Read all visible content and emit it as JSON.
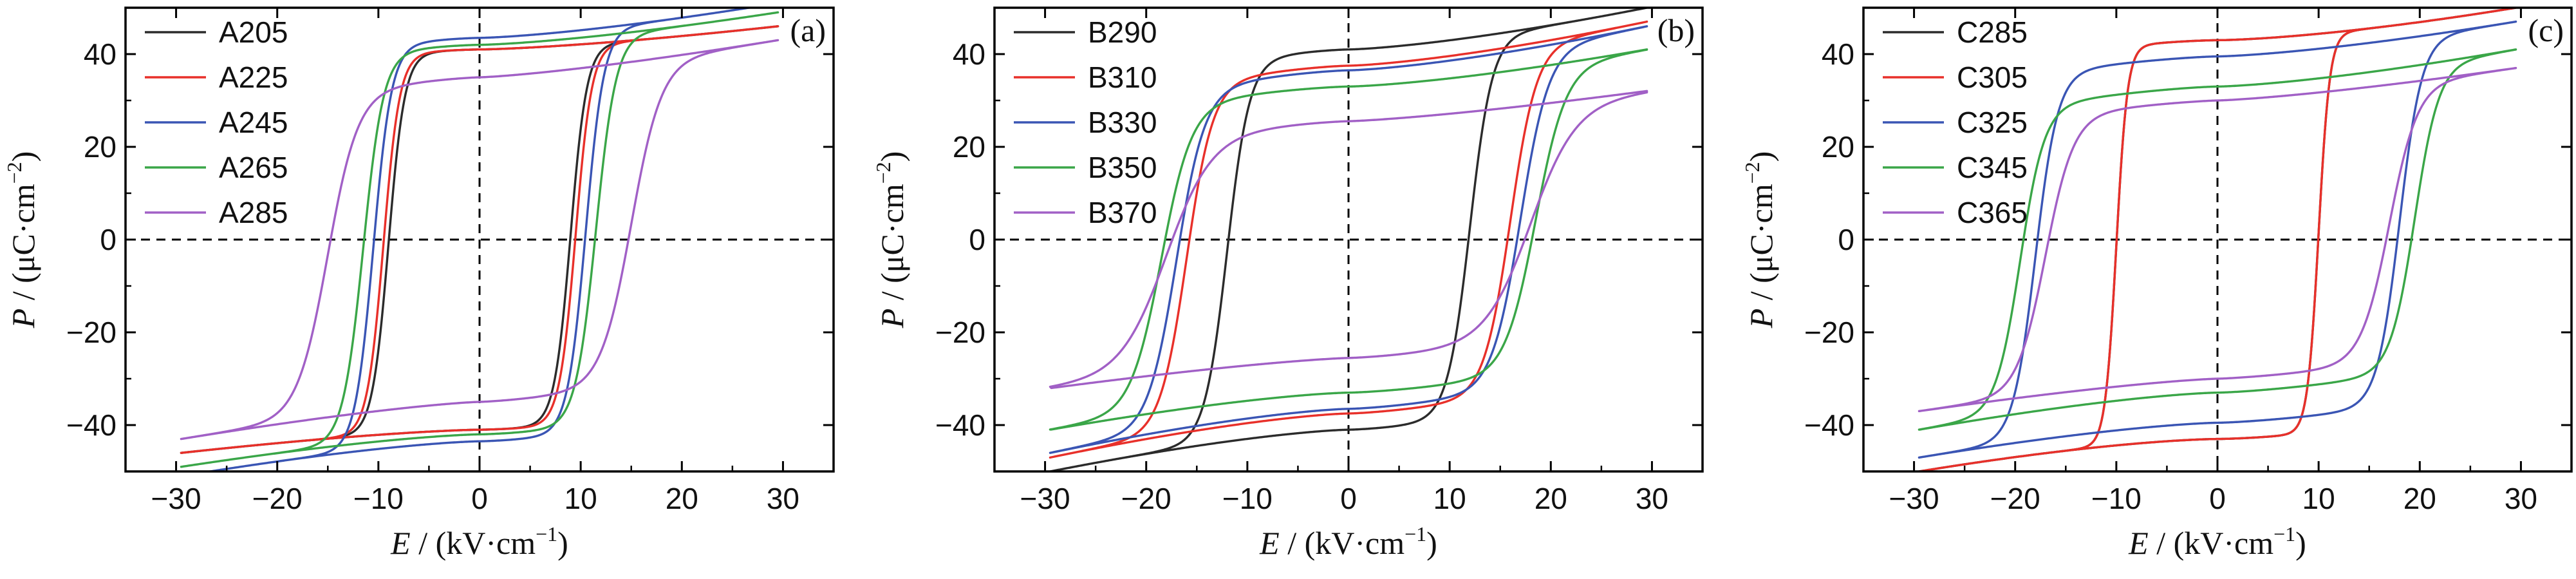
{
  "chart_data": [
    {
      "type": "line",
      "panel_label": "(a)",
      "xlabel": {
        "symbol": "E",
        "unit": " / (kV·cm",
        "exp": "−1",
        "close": ")"
      },
      "ylabel": {
        "symbol": "P",
        "unit": " / (μC·cm",
        "exp": "−2",
        "close": ")"
      },
      "xlim": [
        -35,
        35
      ],
      "ylim": [
        -50,
        50
      ],
      "xticks": [
        -30,
        -20,
        -10,
        0,
        10,
        20,
        30
      ],
      "yticks": [
        -40,
        -20,
        0,
        20,
        40
      ],
      "grid": false,
      "zero_lines": "dashed",
      "legend_position": "top-left",
      "series": [
        {
          "name": "A205",
          "color": "#2b2b2b",
          "Emax": 29.5,
          "Pmax": 41,
          "Pr": 36,
          "Ec": 9,
          "k": 1.6,
          "m": 1.4
        },
        {
          "name": "A225",
          "color": "#e8302a",
          "Emax": 29.5,
          "Pmax": 41,
          "Pr": 36,
          "Ec": 9.5,
          "k": 1.6,
          "m": 1.4
        },
        {
          "name": "A245",
          "color": "#3a55b4",
          "Emax": 29.5,
          "Pmax": 43.5,
          "Pr": 36,
          "Ec": 10.5,
          "k": 1.8,
          "m": 1.4
        },
        {
          "name": "A265",
          "color": "#3aa648",
          "Emax": 29.5,
          "Pmax": 42,
          "Pr": 35,
          "Ec": 11.5,
          "k": 2.0,
          "m": 1.4
        },
        {
          "name": "A285",
          "color": "#a160c6",
          "Emax": 29.5,
          "Pmax": 35,
          "Pr": 27,
          "Ec": 15,
          "k": 3.0,
          "m": 1.3
        }
      ]
    },
    {
      "type": "line",
      "panel_label": "(b)",
      "xlabel": {
        "symbol": "E",
        "unit": " / (kV·cm",
        "exp": "−1",
        "close": ")"
      },
      "ylabel": {
        "symbol": "P",
        "unit": " / (μC·cm",
        "exp": "−2",
        "close": ")"
      },
      "xlim": [
        -35,
        35
      ],
      "ylim": [
        -50,
        50
      ],
      "xticks": [
        -30,
        -20,
        -10,
        0,
        10,
        20,
        30
      ],
      "yticks": [
        -40,
        -20,
        0,
        20,
        40
      ],
      "grid": false,
      "zero_lines": "dashed",
      "legend_position": "top-left",
      "series": [
        {
          "name": "B290",
          "color": "#2b2b2b",
          "Emax": 29.5,
          "Pmax": 41,
          "Pr": 32,
          "Ec": 12,
          "k": 2.2,
          "m": 1.4
        },
        {
          "name": "B310",
          "color": "#e8302a",
          "Emax": 29.5,
          "Pmax": 37.5,
          "Pr": 28,
          "Ec": 16,
          "k": 2.6,
          "m": 1.4
        },
        {
          "name": "B330",
          "color": "#3a55b4",
          "Emax": 29.5,
          "Pmax": 36.5,
          "Pr": 27,
          "Ec": 17,
          "k": 2.8,
          "m": 1.4
        },
        {
          "name": "B350",
          "color": "#3aa648",
          "Emax": 29.5,
          "Pmax": 33,
          "Pr": 25,
          "Ec": 18.5,
          "k": 3.0,
          "m": 1.4
        },
        {
          "name": "B370",
          "color": "#a160c6",
          "Emax": 29.5,
          "Pmax": 25.5,
          "Pr": 19,
          "Ec": 18,
          "k": 4.5,
          "m": 1.3
        }
      ]
    },
    {
      "type": "line",
      "panel_label": "(c)",
      "xlabel": {
        "symbol": "E",
        "unit": " / (kV·cm",
        "exp": "−1",
        "close": ")"
      },
      "ylabel": {
        "symbol": "P",
        "unit": " / (μC·cm",
        "exp": "−2",
        "close": ")"
      },
      "xlim": [
        -35,
        35
      ],
      "ylim": [
        -50,
        50
      ],
      "xticks": [
        -30,
        -20,
        -10,
        0,
        10,
        20,
        30
      ],
      "yticks": [
        -40,
        -20,
        0,
        20,
        40
      ],
      "grid": false,
      "zero_lines": "dashed",
      "legend_position": "top-left",
      "series": [
        {
          "name": "C285",
          "color": "#2b2b2b",
          "Emax": 29.5,
          "Pmax": 43,
          "Pr": 36,
          "Ec": 10,
          "k": 1.1,
          "m": 1.5
        },
        {
          "name": "C305",
          "color": "#e8302a",
          "Emax": 29.5,
          "Pmax": 43,
          "Pr": 36,
          "Ec": 10,
          "k": 1.1,
          "m": 1.5
        },
        {
          "name": "C325",
          "color": "#3a55b4",
          "Emax": 29.5,
          "Pmax": 39.5,
          "Pr": 32,
          "Ec": 18,
          "k": 2.2,
          "m": 1.4
        },
        {
          "name": "C345",
          "color": "#3aa648",
          "Emax": 29.5,
          "Pmax": 33,
          "Pr": 25,
          "Ec": 19.5,
          "k": 2.4,
          "m": 1.4
        },
        {
          "name": "C365",
          "color": "#a160c6",
          "Emax": 29.5,
          "Pmax": 30,
          "Pr": 23,
          "Ec": 17,
          "k": 2.8,
          "m": 1.3
        }
      ]
    }
  ]
}
